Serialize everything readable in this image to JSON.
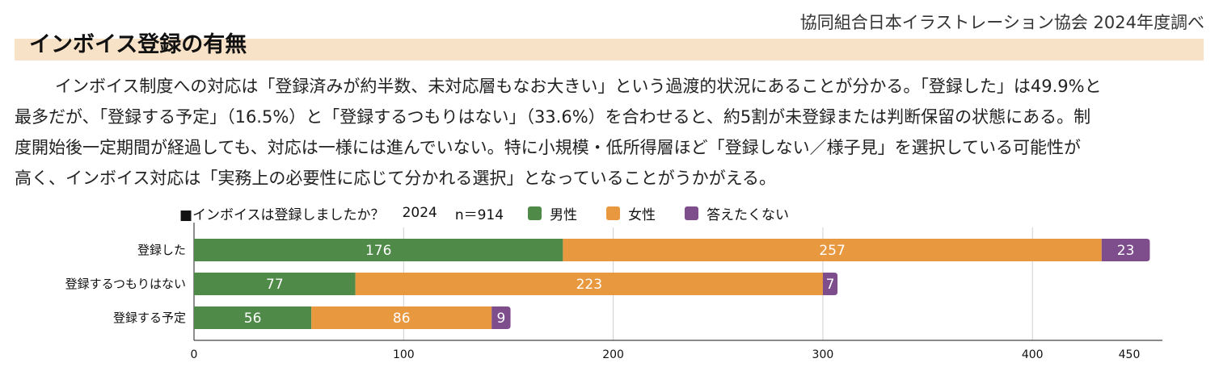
{
  "header": {
    "title": "インボイス登録の有無",
    "source": "協同組合日本イラストレーション協会 2024年度調べ"
  },
  "body": {
    "lines": [
      "インボイス制度への対応は「登録済みが約半数、未対応層もなお大きい」という過渡的状況にあることが分かる。「登録した」は49.9%と",
      "最多だが、「登録する予定」（16.5%）と「登録するつもりはない」（33.6%）を合わせると、約5割が未登録または判断保留の状態にある。制",
      "度開始後一定期間が経過しても、対応は一様には進んでいない。特に小規模・低所得層ほど「登録しない／様子見」を選択している可能性が",
      "高く、インボイス対応は「実務上の必要性に応じて分かれる選択」となっていることがうかがえる。"
    ]
  },
  "legend": {
    "question": "■インボイスは登録しましたか？",
    "year": "2024",
    "n": "n＝914"
  },
  "chart_data": {
    "type": "bar",
    "orientation": "horizontal",
    "stacked": true,
    "categories": [
      "登録した",
      "登録するつもりはない",
      "登録する予定"
    ],
    "series": [
      {
        "name": "男性",
        "color": "#4f8a48",
        "values": [
          176,
          77,
          56
        ]
      },
      {
        "name": "女性",
        "color": "#e8983f",
        "values": [
          257,
          223,
          86
        ]
      },
      {
        "name": "答えたくない",
        "color": "#7d4d8c",
        "values": [
          23,
          7,
          9
        ]
      }
    ],
    "xlim": [
      0,
      450
    ],
    "xticks": [
      0,
      100,
      200,
      300,
      400,
      450
    ],
    "grid": true,
    "legend_position": "top"
  }
}
